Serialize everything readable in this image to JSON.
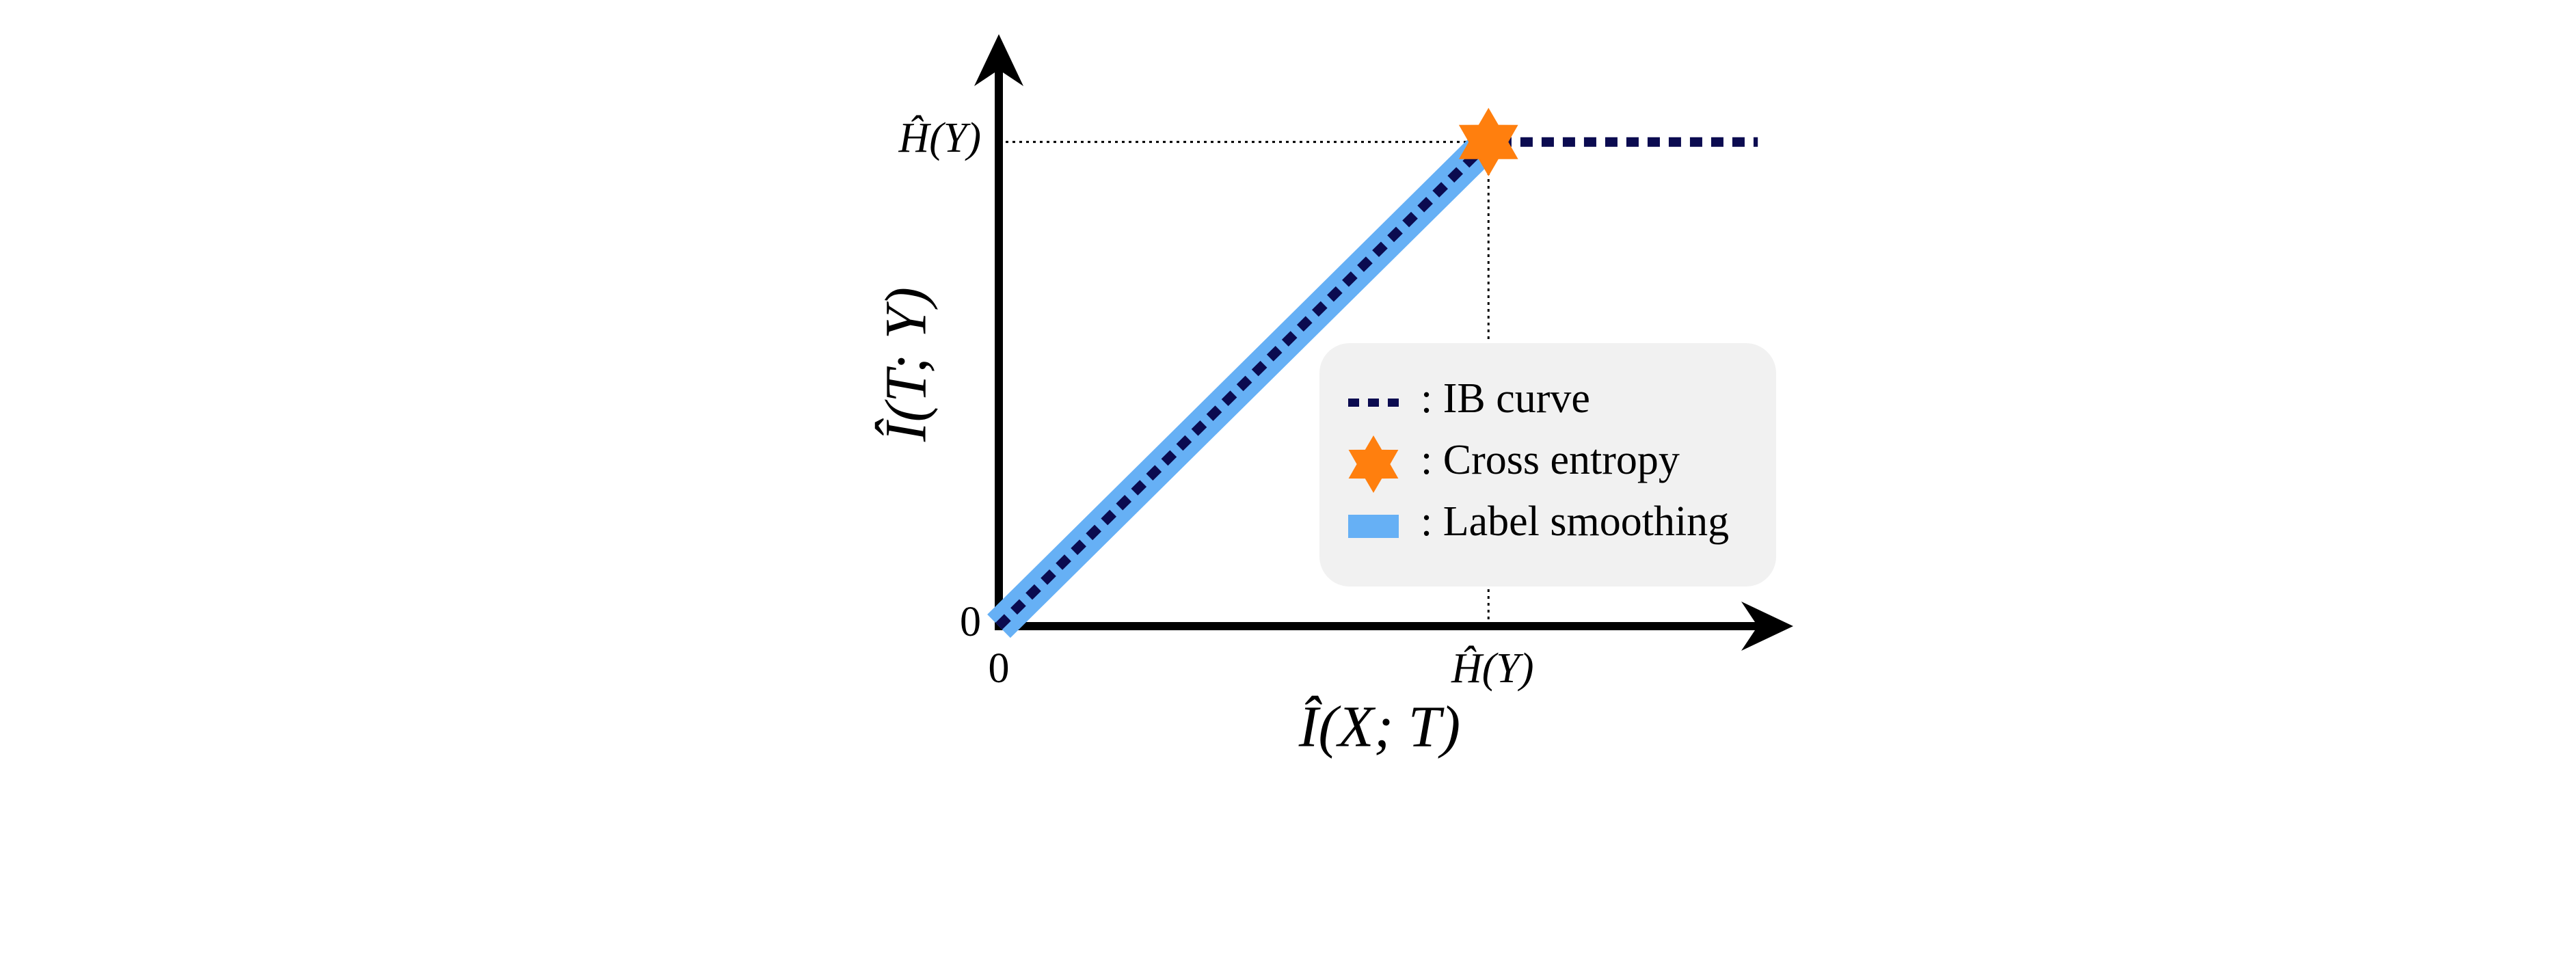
{
  "chart_data": {
    "type": "line",
    "xlabel": "Î(X; T)",
    "ylabel": "Î(T; Y)",
    "xlim": [
      0,
      1.6
    ],
    "ylim": [
      0,
      1.2
    ],
    "xticks": [
      0,
      {
        "value": 1,
        "label": "Ĥ(Y)"
      }
    ],
    "yticks": [
      0,
      {
        "value": 1,
        "label": "Ĥ(Y)"
      }
    ],
    "grid": true,
    "legend": "lower right",
    "series": [
      {
        "name": ": IB curve",
        "type": "line",
        "style": "dotted",
        "color": "#0b0b50",
        "x": [
          0,
          1,
          1.55
        ],
        "values": [
          0,
          1,
          1
        ]
      },
      {
        "name": ": Cross entropy",
        "type": "scatter",
        "marker": "star",
        "color": "#ff7f0e",
        "x": [
          1
        ],
        "values": [
          1
        ]
      },
      {
        "name": ": Label smoothing",
        "type": "line",
        "style": "band",
        "color": "#66b0f5",
        "x": [
          0,
          1
        ],
        "values": [
          0,
          1
        ]
      }
    ]
  }
}
